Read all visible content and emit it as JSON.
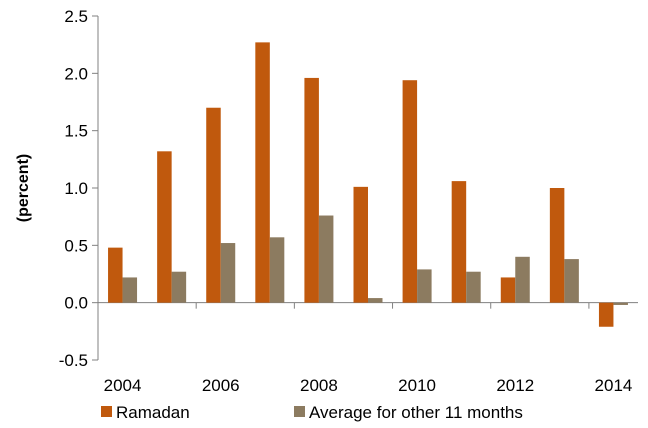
{
  "chart_data": {
    "type": "bar",
    "title": "",
    "xlabel": "",
    "ylabel": "(percent)",
    "ylim": [
      -0.5,
      2.5
    ],
    "yticks": [
      -0.5,
      0.0,
      0.5,
      1.0,
      1.5,
      2.0,
      2.5
    ],
    "ytick_labels": [
      "-0.5",
      "0.0",
      "0.5",
      "1.0",
      "1.5",
      "2.0",
      "2.5"
    ],
    "categories": [
      "2004",
      "2005",
      "2006",
      "2007",
      "2008",
      "2009",
      "2010",
      "2011",
      "2012",
      "2013",
      "2014"
    ],
    "xtick_labels": [
      "2004",
      "2006",
      "2008",
      "2010",
      "2012",
      "2014"
    ],
    "series": [
      {
        "name": "Ramadan",
        "color": "#C0590D",
        "values": [
          0.48,
          1.32,
          1.7,
          2.27,
          1.96,
          1.01,
          1.94,
          1.06,
          0.22,
          1.0,
          -0.21
        ]
      },
      {
        "name": "Average for other 11 months",
        "color": "#8C7B60",
        "values": [
          0.22,
          0.27,
          0.52,
          0.57,
          0.76,
          0.04,
          0.29,
          0.27,
          0.4,
          0.38,
          -0.02
        ]
      }
    ],
    "grid": false,
    "legend": "bottom"
  }
}
